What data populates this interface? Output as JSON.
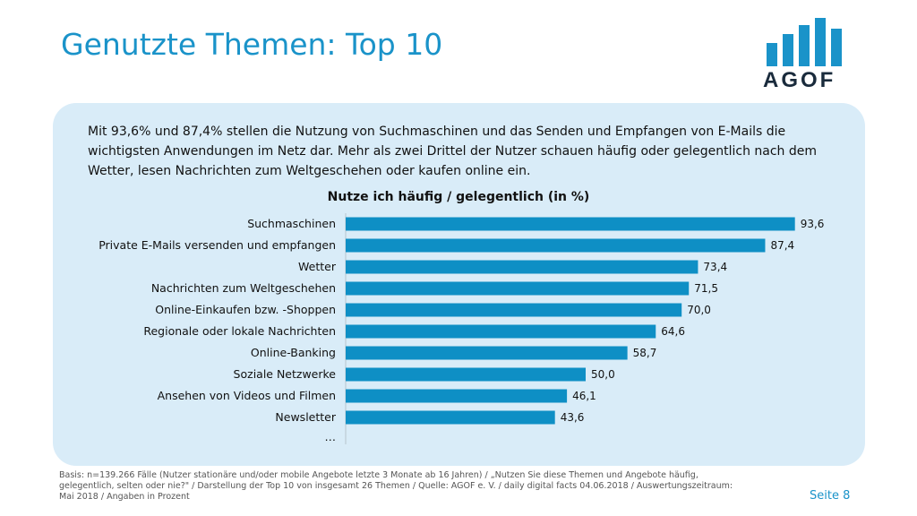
{
  "header": {
    "title": "Genutzte Themen: Top 10",
    "logo_text": "AGOF"
  },
  "intro_text": "Mit 93,6% und 87,4% stellen die Nutzung von Suchmaschinen und das Senden und Empfangen von E-Mails die wichtigsten Anwendungen im Netz dar. Mehr als zwei Drittel der Nutzer schauen häufig oder gelegentlich nach dem Wetter, lesen Nachrichten zum Weltgeschehen oder kaufen online ein.",
  "chart_data": {
    "type": "bar",
    "orientation": "horizontal",
    "title": "Nutze ich häufig / gelegentlich (in %)",
    "categories": [
      "Suchmaschinen",
      "Private E-Mails versenden und empfangen",
      "Wetter",
      "Nachrichten zum Weltgeschehen",
      "Online-Einkaufen bzw. -Shoppen",
      "Regionale oder lokale Nachrichten",
      "Online-Banking",
      "Soziale Netzwerke",
      "Ansehen von Videos und Filmen",
      "Newsletter"
    ],
    "values": [
      93.6,
      87.4,
      73.4,
      71.5,
      70.0,
      64.6,
      58.7,
      50.0,
      46.1,
      43.6
    ],
    "value_labels": [
      "93,6",
      "87,4",
      "73,4",
      "71,5",
      "70,0",
      "64,6",
      "58,7",
      "50,0",
      "46,1",
      "43,6"
    ],
    "trailing_label": "…",
    "xlim": [
      0,
      100
    ],
    "grid": false,
    "legend": "none",
    "bar_color": "#0e8fc5"
  },
  "colors": {
    "accent": "#1a93c9",
    "panel": "#d9ecf8",
    "bar": "#0e8fc5"
  },
  "footer": {
    "note": "Basis: n=139.266 Fälle (Nutzer stationäre und/oder mobile Angebote letzte 3 Monate ab 16 Jahren) / „Nutzen Sie diese Themen und Angebote häufig, gelegentlich, selten oder nie?\" / Darstellung der Top 10 von insgesamt 26 Themen / Quelle: AGOF e. V. / daily digital facts 04.06.2018 / Auswertungszeitraum: Mai 2018 / Angaben in Prozent",
    "page": "Seite 8"
  }
}
